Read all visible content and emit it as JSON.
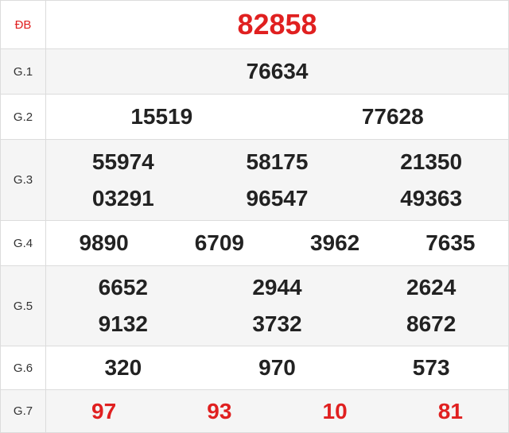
{
  "colors": {
    "red": "#e02020",
    "text": "#222222",
    "alt_row": "#f5f5f5"
  },
  "rows": [
    {
      "label": "ĐB",
      "numbers": [
        "82858"
      ]
    },
    {
      "label": "G.1",
      "numbers": [
        "76634"
      ]
    },
    {
      "label": "G.2",
      "numbers": [
        "15519",
        "77628"
      ]
    },
    {
      "label": "G.3",
      "numbers": [
        "55974",
        "58175",
        "21350",
        "03291",
        "96547",
        "49363"
      ]
    },
    {
      "label": "G.4",
      "numbers": [
        "9890",
        "6709",
        "3962",
        "7635"
      ]
    },
    {
      "label": "G.5",
      "numbers": [
        "6652",
        "2944",
        "2624",
        "9132",
        "3732",
        "8672"
      ]
    },
    {
      "label": "G.6",
      "numbers": [
        "320",
        "970",
        "573"
      ]
    },
    {
      "label": "G.7",
      "numbers": [
        "97",
        "93",
        "10",
        "81"
      ]
    }
  ]
}
